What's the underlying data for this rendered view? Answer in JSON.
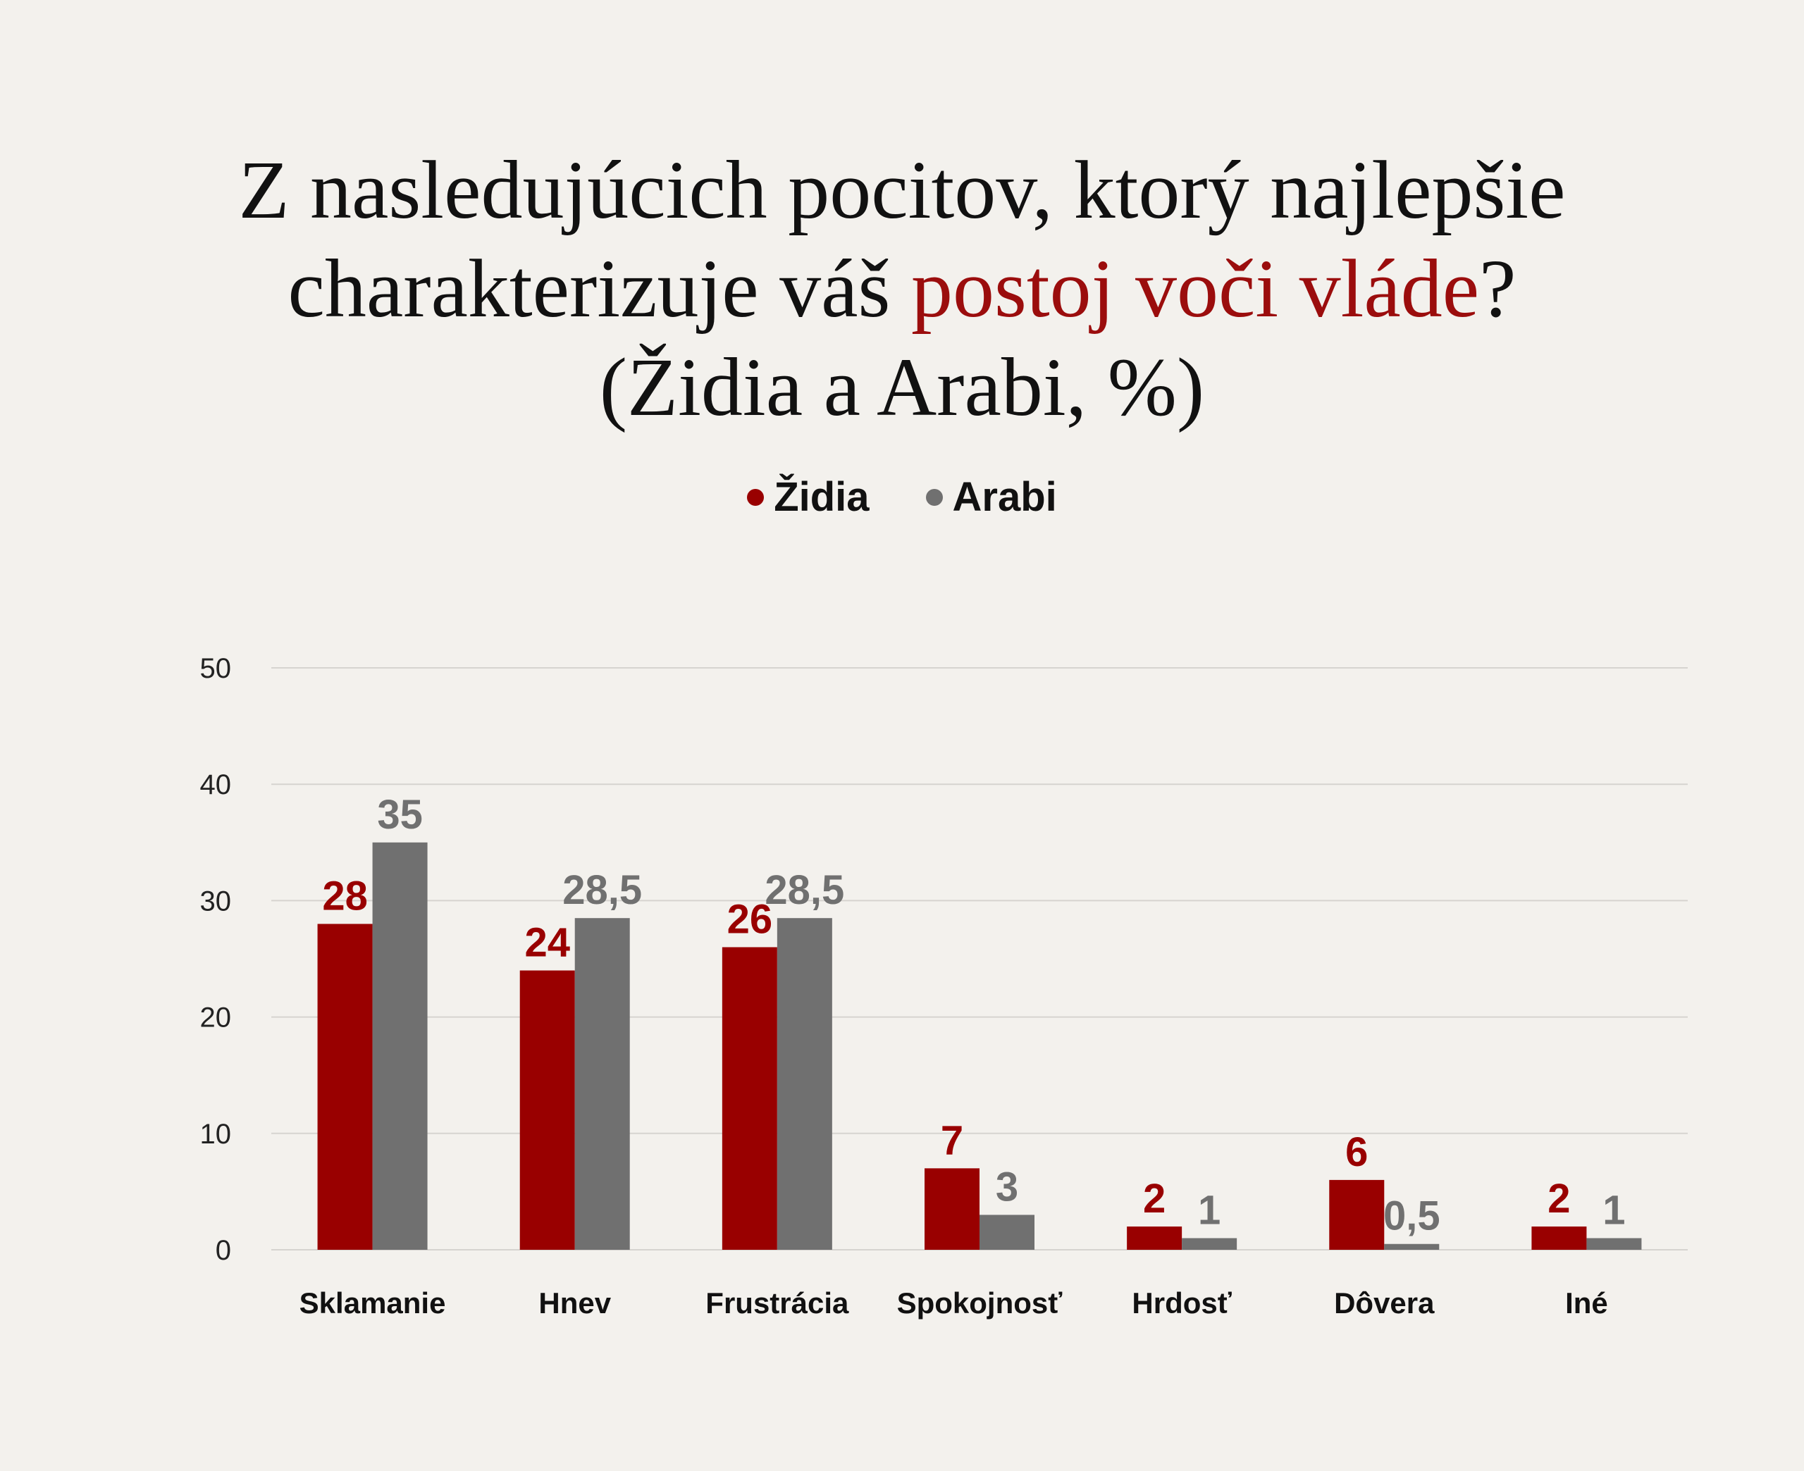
{
  "title": {
    "line1": "Z nasledujúcich pocitov, ktorý najlepšie",
    "line2_prefix": "charakterizuje váš ",
    "line2_highlight": "postoj voči vláde",
    "line2_suffix": "?",
    "line3": "(Židia a Arabi, %)"
  },
  "colors": {
    "highlight": "#9b0d0d",
    "zidia": "#990000",
    "arabi": "#707070",
    "grid": "#d6d4d0"
  },
  "chart_data": {
    "type": "bar",
    "categories": [
      "Sklamanie",
      "Hnev",
      "Frustrácia",
      "Spokojnosť",
      "Hrdosť",
      "Dôvera",
      "Iné"
    ],
    "series": [
      {
        "name": "Židia",
        "color": "#990000",
        "values": [
          28,
          24,
          26,
          7,
          2,
          6,
          2
        ],
        "labels": [
          "28",
          "24",
          "26",
          "7",
          "2",
          "6",
          "2"
        ]
      },
      {
        "name": "Arabi",
        "color": "#707070",
        "values": [
          35,
          28.5,
          28.5,
          3,
          1,
          0.5,
          1
        ],
        "labels": [
          "35",
          "28,5",
          "28,5",
          "3",
          "1",
          "0,5",
          "1"
        ]
      }
    ],
    "yticks": [
      "0",
      "10",
      "20",
      "30",
      "40",
      "50"
    ],
    "ylim": [
      0,
      50
    ],
    "grid": true,
    "legend_position": "top-center"
  }
}
